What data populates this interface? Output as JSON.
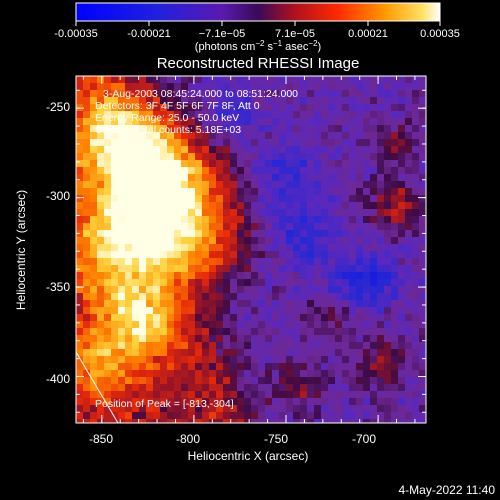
{
  "colorbar": {
    "ticks": [
      "-0.00035",
      "-0.00021",
      "−7.1e−05",
      "7.1e−05",
      "0.00021",
      "0.00035"
    ],
    "units_prefix": "(photons cm",
    "units_exp1": "−2",
    "units_mid": " s",
    "units_exp2": "−1",
    "units_mid2": " asec",
    "units_exp3": "−2",
    "units_suffix": ")"
  },
  "title": "Reconstructed RHESSI Image",
  "annotations": {
    "line1": "3-Aug-2003 08:45:24.000 to 08:51:24.000",
    "line2": "Detectors: 3F 4F 5F 6F 7F 8F, Att 0",
    "line3": "Energy Range: 25.0 - 50.0 keV",
    "line4": "Clean    Total counts: 5.18E+03",
    "peak": "Position of Peak = [-813,-304]"
  },
  "axes": {
    "xlabel": "Heliocentric X (arcsec)",
    "ylabel": "Heliocentric Y (arcsec)",
    "xticks": [
      "-850",
      "-800",
      "-750",
      "-700"
    ],
    "yticks": [
      "-250",
      "-300",
      "-350",
      "-400"
    ]
  },
  "footer": {
    "date": "4-May-2022 11:40"
  },
  "chart_data": {
    "type": "heatmap",
    "xlim": [
      -864,
      -674
    ],
    "ylim": [
      -426,
      -232
    ],
    "x_tick_values": [
      -850,
      -800,
      -750,
      -700
    ],
    "y_tick_values": [
      -250,
      -300,
      -350,
      -400
    ],
    "color_range": [
      -0.00035,
      0.00035
    ],
    "peak": [
      -813,
      -304
    ]
  }
}
